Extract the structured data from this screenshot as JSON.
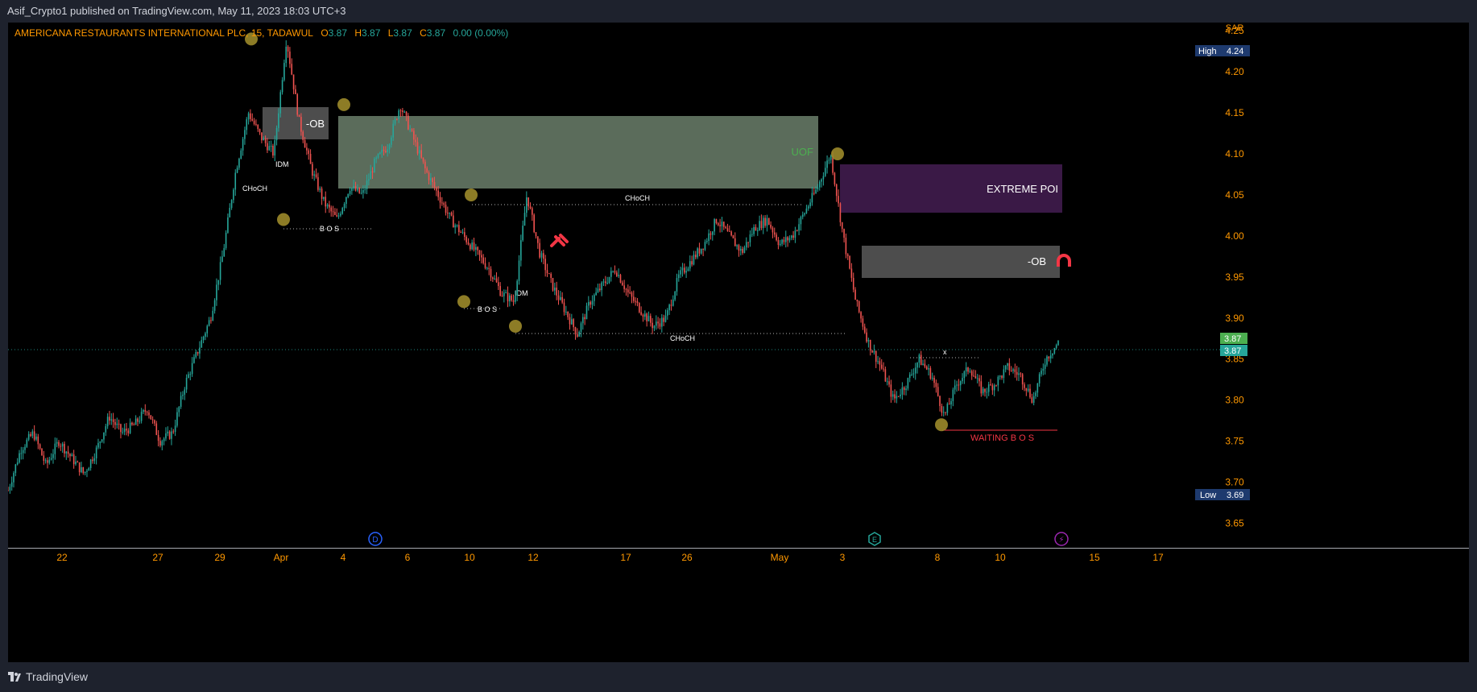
{
  "header": {
    "publish_line": "Asif_Crypto1 published on TradingView.com, May 11, 2023 18:03 UTC+3"
  },
  "footer": {
    "brand": "TradingView"
  },
  "legend": {
    "symbol": "AMERICANA RESTAURANTS INTERNATIONAL PLC, 15, TADAWUL",
    "o_label": "O",
    "o_value": "3.87",
    "h_label": "H",
    "h_value": "3.87",
    "l_label": "L",
    "l_value": "3.87",
    "c_label": "C",
    "c_value": "3.87",
    "change": "0.00 (0.00%)"
  },
  "price_axis": {
    "currency": "SAR",
    "high_label": "High",
    "high_value": "4.24",
    "low_label": "Low",
    "low_value": "3.69",
    "last_price": "3.87",
    "last_price_2": "3.87"
  },
  "colors": {
    "up": "#26a69a",
    "down": "#ef5350",
    "zone_grey": "#5a5a5a",
    "zone_green": "#6b7f6b",
    "zone_purple": "#3d1a4a",
    "marker": "#9c8a2a",
    "axis_text": "#ff9800"
  },
  "annotations": {
    "ob_1": "-OB",
    "uof": "UOF",
    "extreme_poi": "EXTREME POI",
    "ob_2": "-OB",
    "choch_1": "CHoCH",
    "choch_2": "CHoCH",
    "choch_3": "CHoCH",
    "idm_1": "IDM",
    "idm_2": "IDM",
    "bos_1": "B O S",
    "bos_2": "B O S",
    "x_mark": "x",
    "waiting_bos": "WAITING B O S"
  },
  "event_icons": [
    "D",
    "E",
    "⚡"
  ],
  "chart_data": {
    "type": "line",
    "title": "AMERICANA RESTAURANTS INTERNATIONAL PLC, 15, TADAWUL",
    "ylabel": "SAR",
    "ylim": [
      3.62,
      4.26
    ],
    "y_ticks": [
      "4.25",
      "4.20",
      "4.15",
      "4.10",
      "4.05",
      "4.00",
      "3.95",
      "3.90",
      "3.85",
      "3.80",
      "3.75",
      "3.70",
      "3.65"
    ],
    "x_ticks": [
      "22",
      "27",
      "29",
      "Apr",
      "4",
      "6",
      "10",
      "12",
      "17",
      "26",
      "May",
      "3",
      "8",
      "10",
      "15",
      "17"
    ],
    "grid": false,
    "series": [
      {
        "values": [
          3.69,
          3.74,
          3.76,
          3.72,
          3.75,
          3.73,
          3.71,
          3.74,
          3.78,
          3.76,
          3.77,
          3.79,
          3.75,
          3.76,
          3.82,
          3.86,
          3.9,
          3.98,
          4.08,
          4.15,
          4.12,
          4.1,
          4.24,
          4.14,
          4.08,
          4.04,
          4.02,
          4.06,
          4.05,
          4.09,
          4.11,
          4.16,
          4.12,
          4.08,
          4.05,
          4.02,
          4.0,
          3.98,
          3.96,
          3.93,
          3.92,
          4.05,
          3.98,
          3.94,
          3.91,
          3.88,
          3.92,
          3.94,
          3.96,
          3.93,
          3.91,
          3.89,
          3.9,
          3.95,
          3.97,
          3.99,
          4.02,
          4.0,
          3.98,
          4.01,
          4.02,
          3.99,
          4.0,
          4.03,
          4.06,
          4.1,
          4.0,
          3.92,
          3.87,
          3.84,
          3.8,
          3.82,
          3.85,
          3.83,
          3.78,
          3.82,
          3.84,
          3.81,
          3.82,
          3.84,
          3.83,
          3.8,
          3.85,
          3.87
        ]
      }
    ],
    "levels": {
      "high": 4.24,
      "low": 3.69,
      "last": 3.87
    }
  }
}
